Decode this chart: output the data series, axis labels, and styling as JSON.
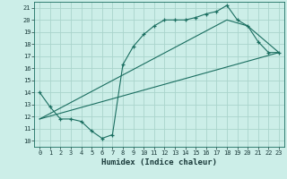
{
  "xlabel": "Humidex (Indice chaleur)",
  "bg_color": "#cceee8",
  "grid_color": "#aad4cc",
  "line_color": "#1a6e60",
  "xlim": [
    -0.5,
    23.5
  ],
  "ylim": [
    9.5,
    21.5
  ],
  "xticks": [
    0,
    1,
    2,
    3,
    4,
    5,
    6,
    7,
    8,
    9,
    10,
    11,
    12,
    13,
    14,
    15,
    16,
    17,
    18,
    19,
    20,
    21,
    22,
    23
  ],
  "yticks": [
    10,
    11,
    12,
    13,
    14,
    15,
    16,
    17,
    18,
    19,
    20,
    21
  ],
  "line1_x": [
    0,
    1,
    2,
    3,
    4,
    5,
    6,
    7,
    8,
    9,
    10,
    11,
    12,
    13,
    14,
    15,
    16,
    17,
    18,
    19,
    20,
    21,
    22,
    23
  ],
  "line1_y": [
    14.0,
    12.8,
    11.8,
    11.8,
    11.6,
    10.8,
    10.2,
    10.5,
    16.3,
    17.8,
    18.8,
    19.5,
    20.0,
    20.0,
    20.0,
    20.2,
    20.5,
    20.7,
    21.2,
    20.0,
    19.5,
    18.2,
    17.3,
    17.3
  ],
  "line2_x": [
    0,
    23
  ],
  "line2_y": [
    11.8,
    17.3
  ],
  "line3_x": [
    0,
    18,
    20,
    23
  ],
  "line3_y": [
    11.8,
    20.0,
    19.5,
    17.3
  ]
}
